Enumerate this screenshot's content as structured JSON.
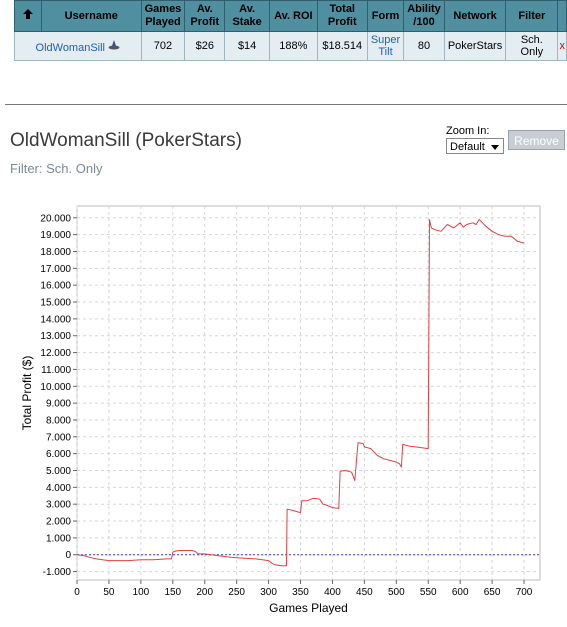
{
  "table": {
    "sort_icon": "up-arrow-icon",
    "headers": [
      "Username",
      "Games Played",
      "Av. Profit",
      "Av. Stake",
      "Av. ROI",
      "Total Profit",
      "Form",
      "Ability /100",
      "Network",
      "Filter"
    ],
    "row": {
      "username": "OldWomanSill",
      "user_icon": "poker-hat-icon",
      "games_played": "702",
      "av_profit": "$26",
      "av_stake": "$14",
      "av_roi": "188%",
      "total_profit": "$18.514",
      "form": "Super Tilt",
      "ability": "80",
      "network": "PokerStars",
      "filter": "Sch. Only",
      "remove_mark": "x"
    }
  },
  "player_title": "OldWomanSill (PokerStars)",
  "filter_text": "Filter: Sch. Only",
  "zoom": {
    "label": "Zoom In:",
    "value": "Default"
  },
  "remove_label": "Remove",
  "chart_data": {
    "type": "line",
    "xlabel": "Games Played",
    "ylabel": "Total Profit ($)",
    "xlim": [
      0,
      725
    ],
    "ylim": [
      -1500,
      20700
    ],
    "x_ticks": [
      "0",
      "50",
      "100",
      "150",
      "200",
      "250",
      "300",
      "350",
      "400",
      "450",
      "500",
      "550",
      "600",
      "650",
      "700"
    ],
    "y_ticks": [
      "20.000",
      "19.000",
      "18.000",
      "17.000",
      "16.000",
      "15.000",
      "14.000",
      "13.000",
      "12.000",
      "11.000",
      "10.000",
      "9.000",
      "8.000",
      "7.000",
      "6.000",
      "5.000",
      "4.000",
      "3.000",
      "2.000",
      "1.000",
      "0",
      "-1.000"
    ],
    "grid": true,
    "colors": {
      "line": "#e04040",
      "zero_line": "#4040c0",
      "grid": "#d6d6d6"
    },
    "series": [
      {
        "x": [
          0,
          10,
          20,
          30,
          40,
          50,
          60,
          80,
          100,
          120,
          140,
          148,
          150,
          152,
          160,
          170,
          180,
          185,
          190,
          200,
          220,
          240,
          260,
          280,
          300,
          305,
          310,
          320,
          328,
          329,
          330,
          340,
          350,
          352,
          360,
          370,
          380,
          385,
          390,
          400,
          410,
          412,
          420,
          430,
          434,
          435,
          440,
          448,
          450,
          460,
          470,
          480,
          490,
          500,
          505,
          508,
          510,
          520,
          530,
          540,
          550,
          552,
          553,
          555,
          560,
          570,
          580,
          590,
          600,
          605,
          610,
          620,
          625,
          630,
          635,
          640,
          650,
          660,
          670,
          680,
          690,
          700
        ],
        "y": [
          0,
          -50,
          -150,
          -250,
          -300,
          -350,
          -350,
          -350,
          -300,
          -300,
          -250,
          -250,
          150,
          200,
          250,
          250,
          250,
          200,
          50,
          50,
          -50,
          -150,
          -200,
          -250,
          -350,
          -500,
          -600,
          -650,
          -650,
          2700,
          2700,
          2600,
          2500,
          3200,
          3200,
          3350,
          3300,
          3000,
          2950,
          2800,
          2750,
          4950,
          5000,
          4900,
          4500,
          4400,
          6650,
          6600,
          6400,
          6300,
          5900,
          5700,
          5600,
          5500,
          5400,
          5200,
          6550,
          6450,
          6400,
          6350,
          6300,
          19900,
          19700,
          19400,
          19300,
          19200,
          19600,
          19400,
          19700,
          19450,
          19600,
          19700,
          19600,
          19900,
          19700,
          19500,
          19200,
          19000,
          18900,
          18900,
          18600,
          18500
        ]
      }
    ]
  }
}
